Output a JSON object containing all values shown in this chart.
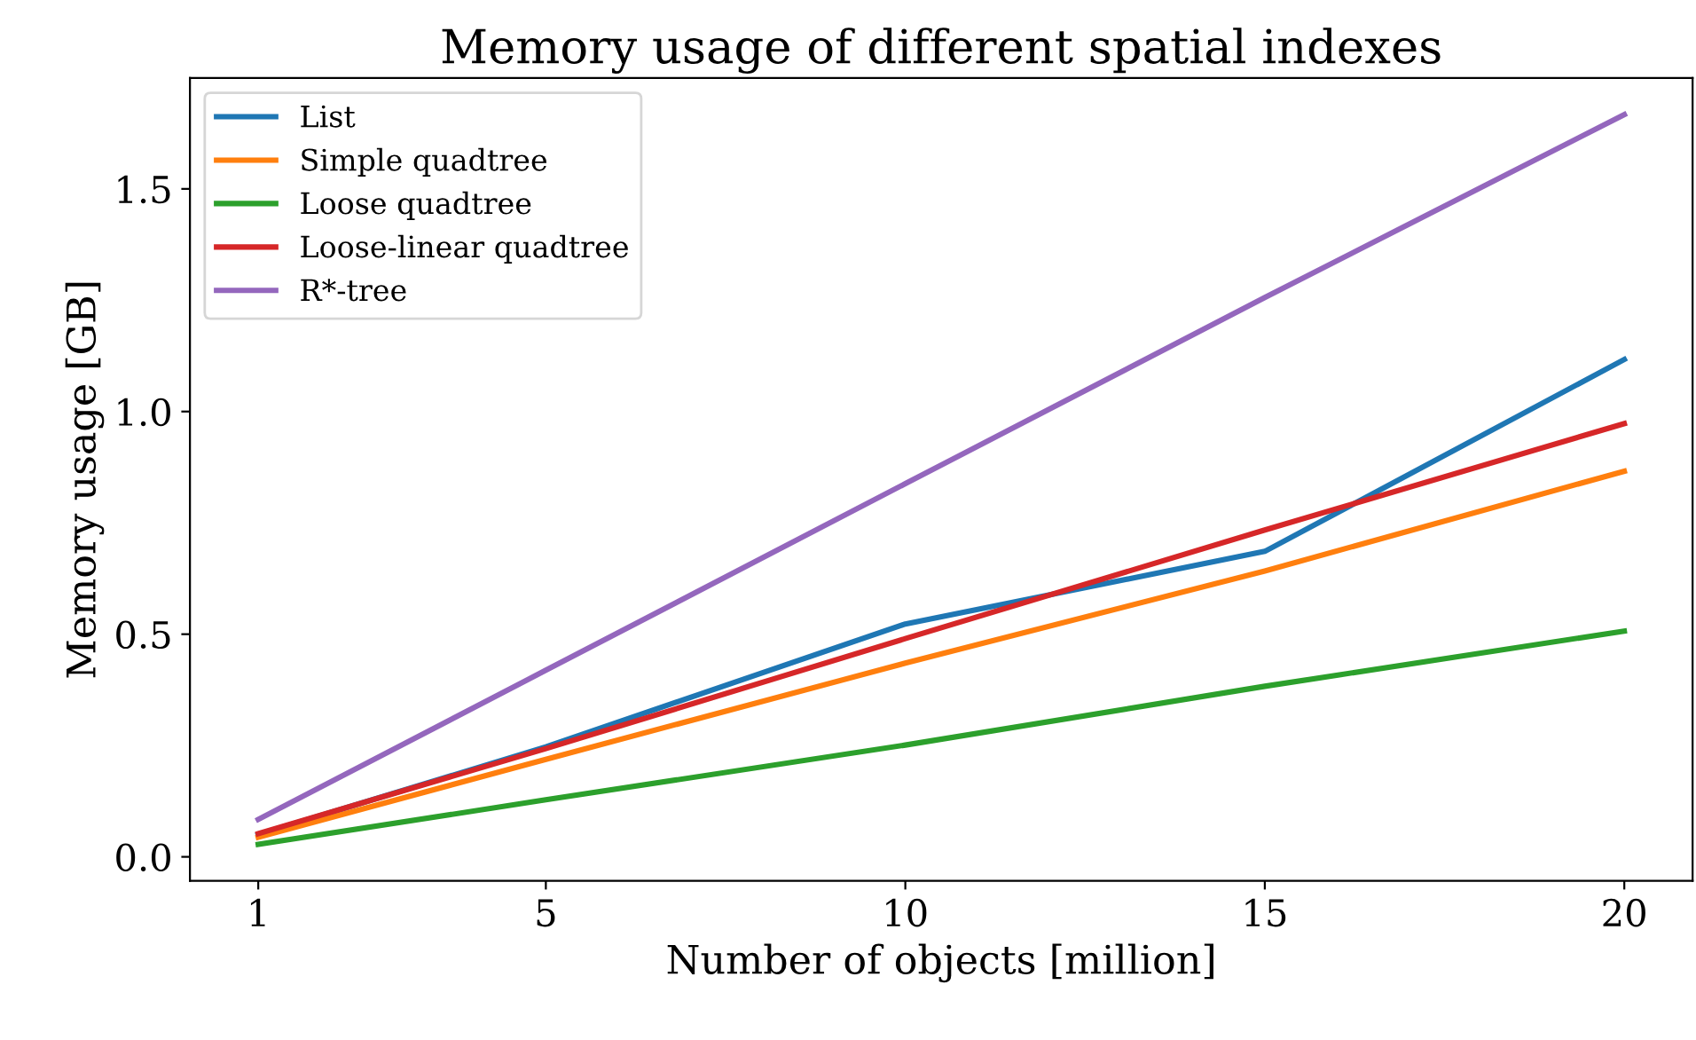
{
  "chart_data": {
    "type": "line",
    "title": "Memory usage of different spatial indexes",
    "xlabel": "Number of objects [million]",
    "ylabel": "Memory usage [GB]",
    "x": [
      1,
      5,
      10,
      15,
      20
    ],
    "series": [
      {
        "name": "List",
        "color": "#1f77b4",
        "values": [
          0.05,
          0.247,
          0.523,
          0.686,
          1.117
        ]
      },
      {
        "name": "Simple quadtree",
        "color": "#ff7f0e",
        "values": [
          0.044,
          0.219,
          0.435,
          0.642,
          0.866
        ]
      },
      {
        "name": "Loose quadtree",
        "color": "#2ca02c",
        "values": [
          0.028,
          0.128,
          0.251,
          0.383,
          0.507
        ]
      },
      {
        "name": "Loose-linear quadtree",
        "color": "#d62728",
        "values": [
          0.052,
          0.243,
          0.49,
          0.734,
          0.973
        ]
      },
      {
        "name": "R*-tree",
        "color": "#9467bd",
        "values": [
          0.084,
          0.419,
          0.838,
          1.256,
          1.667
        ]
      }
    ],
    "xlim": [
      0.05,
      20.95
    ],
    "ylim": [
      -0.054,
      1.749
    ],
    "xticks": [
      1,
      5,
      10,
      15,
      20
    ],
    "yticks": [
      {
        "value": 0,
        "label": "0.0"
      },
      0.5,
      {
        "value": 1,
        "label": "1.0"
      },
      1.5
    ],
    "legend": "top left",
    "grid": false,
    "marker": "none",
    "line_style": "solid"
  }
}
